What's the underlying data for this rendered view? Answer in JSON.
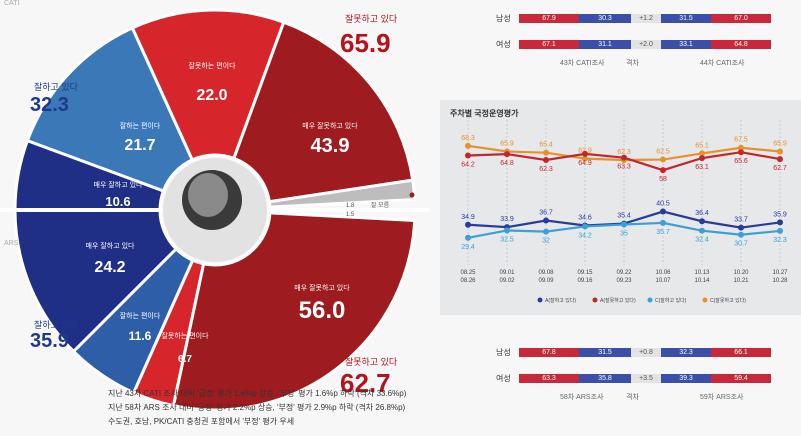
{
  "labels": {
    "cati": "CATI",
    "ars": "ARS",
    "doing_wrong": "잘못하고 있다",
    "doing_well": "잘하고 있다",
    "wrong_side": "잘못하는 편이다",
    "well_side": "잘하는 편이다",
    "very_wrong": "매우 잘못하고 있다",
    "very_well": "매우 잘하고 있다",
    "dont_know": "잘 모름"
  },
  "cati": {
    "wrong_total": "65.9",
    "well_total": "32.3",
    "very_wrong": "43.9",
    "wrong_side": "22.0",
    "well_side": "21.7",
    "very_well": "10.6",
    "dont_know_a": "1.8",
    "dont_know_b": "1.5"
  },
  "ars": {
    "wrong_total": "62.7",
    "well_total": "35.9",
    "very_wrong": "56.0",
    "wrong_side": "6.7",
    "well_side": "11.6",
    "very_well": "24.2"
  },
  "notes": [
    "지난 43차 CATI 조사 대비 '긍정' 평가 1.6%p 상승, '부정' 평가 1.6%p 하락 (격차 33.6%p)",
    "지난 58차 ARS 조사 대비 '긍정' 평가 2.2%p 상승, '부정' 평가 2.9%p 하락 (격차 26.8%p)",
    "수도권, 호남, PK/CATI 충청권 포함에서 '부정' 평가 우세"
  ],
  "gender_top": {
    "rows": [
      {
        "label": "남성",
        "a_blue": "67.9",
        "a_red": "30.3",
        "diff": "+1.2",
        "b_blue": "31.5",
        "b_red": "67.0"
      },
      {
        "label": "여성",
        "a_blue": "67.1",
        "a_red": "31.1",
        "diff": "+2.0",
        "b_blue": "33.1",
        "b_red": "64.8"
      }
    ],
    "caption_left": "43차 CATI조사",
    "caption_mid": "격차",
    "caption_right": "44차 CATI조사"
  },
  "gender_bottom": {
    "rows": [
      {
        "label": "남성",
        "a_blue": "67.8",
        "a_red": "31.5",
        "diff": "+0.8",
        "b_blue": "32.3",
        "b_red": "66.1"
      },
      {
        "label": "여성",
        "a_blue": "63.3",
        "a_red": "35.8",
        "diff": "+3.5",
        "b_blue": "39.3",
        "b_red": "59.4"
      }
    ],
    "caption_left": "58차 ARS조사",
    "caption_mid": "격차",
    "caption_right": "59차 ARS조사"
  },
  "chart_data": {
    "type": "line",
    "title": "주차별 국정운영평가",
    "x": [
      [
        "08.25",
        "08.26"
      ],
      [
        "09.01",
        "09.02"
      ],
      [
        "09.08",
        "09.09"
      ],
      [
        "09.15",
        "09.16"
      ],
      [
        "09.22",
        "09.23"
      ],
      [
        "10.06",
        "10.07"
      ],
      [
        "10.13",
        "10.14"
      ],
      [
        "10.20",
        "10.21"
      ],
      [
        "10.27",
        "10.28"
      ]
    ],
    "ylim": [
      20,
      75
    ],
    "series": [
      {
        "color": "#e8902a",
        "values": [
          68.3,
          65.9,
          65.4,
          62.9,
          62.3,
          62.5,
          65.1,
          67.5,
          65.9
        ]
      },
      {
        "color": "#c0282d",
        "values": [
          64.2,
          64.8,
          62.3,
          64.9,
          63.3,
          58.0,
          63.1,
          65.6,
          62.7
        ]
      },
      {
        "color": "#283c9a",
        "values": [
          34.9,
          33.9,
          36.7,
          34.6,
          35.4,
          40.5,
          36.4,
          33.7,
          35.9
        ]
      },
      {
        "color": "#3aa0d8",
        "values": [
          29.4,
          32.5,
          32.0,
          34.2,
          35.0,
          35.7,
          32.4,
          30.7,
          32.3
        ]
      }
    ],
    "legend": [
      "A(잘하고 있다)",
      "A(잘못하고 있다)",
      "C(잘하고 있다)",
      "C(잘못하고 있다)"
    ]
  },
  "colors": {
    "red_dark": "#9e1b20",
    "red": "#d7262b",
    "blue_dark": "#1f2f86",
    "blue_mid": "#2f5ea8",
    "blue_light": "#3a78b8"
  }
}
